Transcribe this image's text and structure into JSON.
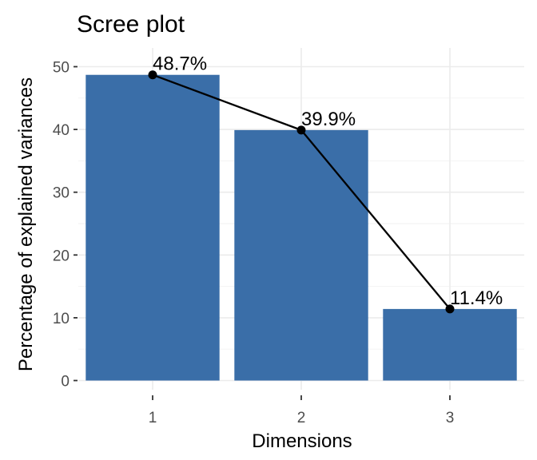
{
  "chart_data": {
    "type": "bar",
    "title": "Scree plot",
    "xlabel": "Dimensions",
    "ylabel": "Percentage of explained variances",
    "categories": [
      "1",
      "2",
      "3"
    ],
    "values": [
      48.7,
      39.9,
      11.4
    ],
    "data_labels": [
      "48.7%",
      "39.9%",
      "11.4%"
    ],
    "ylim": [
      0,
      52
    ],
    "y_ticks": [
      0,
      10,
      20,
      30,
      40,
      50
    ],
    "grid": true,
    "legend": "none",
    "overlay": "line with points",
    "bar_color": "#3A6EA8",
    "line_color": "#000000"
  }
}
